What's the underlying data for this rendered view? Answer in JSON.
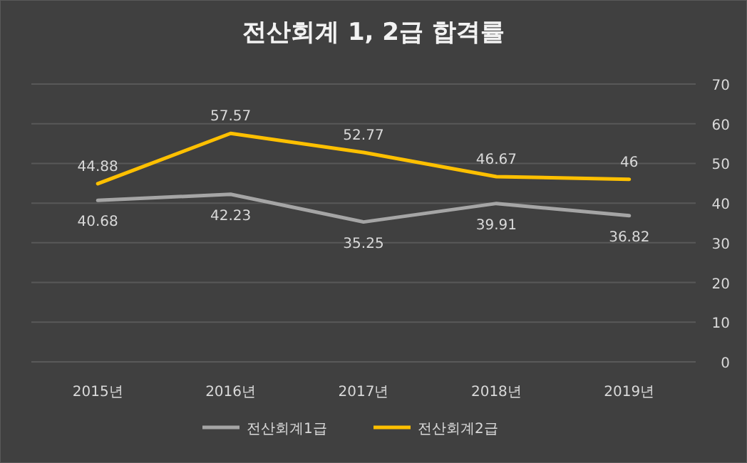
{
  "chart_data": {
    "type": "line",
    "title": "전산회계 1, 2급 합격률",
    "categories": [
      "2015년",
      "2016년",
      "2017년",
      "2018년",
      "2019년"
    ],
    "series": [
      {
        "name": "전산회계1급",
        "color": "#a5a5a5",
        "values": [
          40.68,
          42.23,
          35.25,
          39.91,
          36.82
        ]
      },
      {
        "name": "전산회계2급",
        "color": "#ffc000",
        "values": [
          44.88,
          57.57,
          52.77,
          46.67,
          46
        ]
      }
    ],
    "ylim": [
      0,
      70
    ],
    "yticks": [
      0,
      10,
      20,
      30,
      40,
      50,
      60,
      70
    ],
    "grid": "y",
    "legend": "bottom",
    "data_labels": true
  }
}
